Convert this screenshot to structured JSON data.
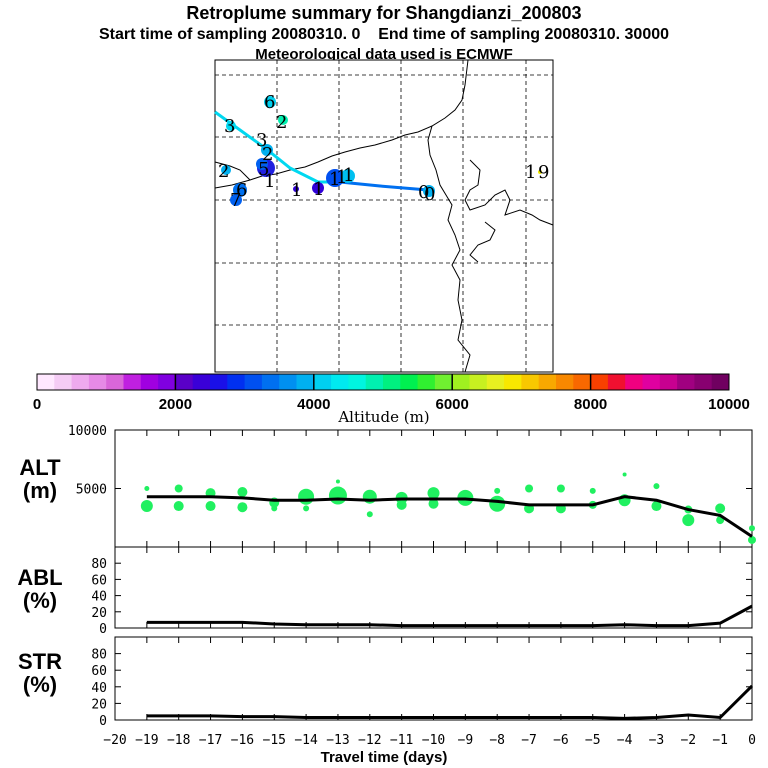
{
  "header": {
    "title": "Retroplume summary for Shangdianzi_200803",
    "start_label": "Start time of sampling 20080310.    0",
    "end_label": "End time of sampling 20080310. 30000",
    "met_label": "Meteorological data used is ECMWF"
  },
  "map": {
    "trajectory_numbers": [
      "6",
      "2",
      "3",
      "3",
      "2",
      "2",
      "5",
      "1",
      "6",
      "7",
      "1",
      "1",
      "1",
      "1",
      "1",
      "0",
      "0",
      "1",
      "9"
    ]
  },
  "colorbar": {
    "title": "Altitude (m)",
    "tick_labels": [
      "0",
      "2000",
      "4000",
      "6000",
      "8000",
      "10000"
    ],
    "colors": [
      "#ffe8ff",
      "#f5ccf5",
      "#eeaaee",
      "#e68ae6",
      "#d966d9",
      "#c020e0",
      "#a000e0",
      "#8000e0",
      "#5a00c8",
      "#3a00d8",
      "#1a10e8",
      "#0030f0",
      "#0050f0",
      "#0070f0",
      "#0090f0",
      "#00b0f0",
      "#00d0f0",
      "#00eaf0",
      "#00f5e0",
      "#00f0b0",
      "#00f080",
      "#00f050",
      "#30f030",
      "#70f030",
      "#a0f020",
      "#c8f020",
      "#e8f020",
      "#f8e800",
      "#f8c800",
      "#f8a800",
      "#f88800",
      "#f86800",
      "#f84000",
      "#f01030",
      "#f00080",
      "#e000a0",
      "#c80090",
      "#a00080",
      "#880070",
      "#700060"
    ]
  },
  "chart_data": [
    {
      "type": "line",
      "name": "ALT",
      "panel_label": [
        "ALT",
        "(m)"
      ],
      "ylim": [
        0,
        10000
      ],
      "yticks": [
        0,
        5000,
        10000
      ],
      "ytick_labels": [
        "",
        "5000",
        "10000"
      ],
      "x": [
        -19,
        -18,
        -17,
        -16,
        -15,
        -14,
        -13,
        -12,
        -11,
        -10,
        -9,
        -8,
        -7,
        -6,
        -5,
        -4,
        -3,
        -2,
        -1,
        0
      ],
      "values": [
        4300,
        4300,
        4300,
        4200,
        4000,
        4000,
        4100,
        4000,
        4100,
        4100,
        4100,
        3900,
        3600,
        3600,
        3600,
        4300,
        4000,
        3200,
        2700,
        900
      ],
      "plume_points": [
        {
          "x": -19,
          "y": 5000,
          "r": 2.5
        },
        {
          "x": -19,
          "y": 3500,
          "r": 6
        },
        {
          "x": -18,
          "y": 5000,
          "r": 4
        },
        {
          "x": -18,
          "y": 3500,
          "r": 5
        },
        {
          "x": -17,
          "y": 4600,
          "r": 5
        },
        {
          "x": -17,
          "y": 3500,
          "r": 5
        },
        {
          "x": -16,
          "y": 4700,
          "r": 5
        },
        {
          "x": -16,
          "y": 3400,
          "r": 5
        },
        {
          "x": -15,
          "y": 3800,
          "r": 5
        },
        {
          "x": -15,
          "y": 3300,
          "r": 3
        },
        {
          "x": -14,
          "y": 4300,
          "r": 8
        },
        {
          "x": -14,
          "y": 3300,
          "r": 3
        },
        {
          "x": -13,
          "y": 4400,
          "r": 9
        },
        {
          "x": -13,
          "y": 5600,
          "r": 2
        },
        {
          "x": -12,
          "y": 4300,
          "r": 7
        },
        {
          "x": -12,
          "y": 2800,
          "r": 3
        },
        {
          "x": -11,
          "y": 4200,
          "r": 6
        },
        {
          "x": -11,
          "y": 3600,
          "r": 5
        },
        {
          "x": -10,
          "y": 4600,
          "r": 6
        },
        {
          "x": -10,
          "y": 3700,
          "r": 5
        },
        {
          "x": -9,
          "y": 4200,
          "r": 8
        },
        {
          "x": -8,
          "y": 3700,
          "r": 8
        },
        {
          "x": -8,
          "y": 4800,
          "r": 3
        },
        {
          "x": -7,
          "y": 5000,
          "r": 4
        },
        {
          "x": -7,
          "y": 3300,
          "r": 5
        },
        {
          "x": -6,
          "y": 5000,
          "r": 4
        },
        {
          "x": -6,
          "y": 3300,
          "r": 5
        },
        {
          "x": -5,
          "y": 3600,
          "r": 4
        },
        {
          "x": -5,
          "y": 4800,
          "r": 3
        },
        {
          "x": -4,
          "y": 6200,
          "r": 2
        },
        {
          "x": -4,
          "y": 4000,
          "r": 6
        },
        {
          "x": -3,
          "y": 5200,
          "r": 3
        },
        {
          "x": -3,
          "y": 3500,
          "r": 5
        },
        {
          "x": -2,
          "y": 2300,
          "r": 6
        },
        {
          "x": -2,
          "y": 3200,
          "r": 4
        },
        {
          "x": -1,
          "y": 3300,
          "r": 5
        },
        {
          "x": -1,
          "y": 2300,
          "r": 4
        },
        {
          "x": 0,
          "y": 1600,
          "r": 3
        },
        {
          "x": 0,
          "y": 600,
          "r": 4
        }
      ]
    },
    {
      "type": "line",
      "name": "ABL",
      "panel_label": [
        "ABL",
        "(%)"
      ],
      "ylim": [
        0,
        100
      ],
      "yticks": [
        0,
        20,
        40,
        60,
        80
      ],
      "ytick_labels": [
        "0",
        "20",
        "40",
        "60",
        "80"
      ],
      "x": [
        -19,
        -18,
        -17,
        -16,
        -15,
        -14,
        -13,
        -12,
        -11,
        -10,
        -9,
        -8,
        -7,
        -6,
        -5,
        -4,
        -3,
        -2,
        -1,
        0
      ],
      "values": [
        7,
        7,
        7,
        7,
        5,
        4,
        4,
        4,
        3,
        3,
        3,
        3,
        3,
        3,
        3,
        4,
        3,
        3,
        6,
        27
      ]
    },
    {
      "type": "line",
      "name": "STR",
      "panel_label": [
        "STR",
        "(%)"
      ],
      "ylim": [
        0,
        100
      ],
      "yticks": [
        0,
        20,
        40,
        60,
        80
      ],
      "ytick_labels": [
        "0",
        "20",
        "40",
        "60",
        "80"
      ],
      "x": [
        -19,
        -18,
        -17,
        -16,
        -15,
        -14,
        -13,
        -12,
        -11,
        -10,
        -9,
        -8,
        -7,
        -6,
        -5,
        -4,
        -3,
        -2,
        -1,
        0
      ],
      "values": [
        5,
        5,
        5,
        4,
        4,
        3,
        3,
        3,
        3,
        3,
        3,
        3,
        3,
        3,
        3,
        2,
        3,
        6,
        3,
        41
      ]
    },
    {
      "type": "axis",
      "name": "travel-time-axis",
      "xlabel": "Travel time (days)",
      "xlim": [
        -20,
        0
      ],
      "xticks": [
        -20,
        -19,
        -18,
        -17,
        -16,
        -15,
        -14,
        -13,
        -12,
        -11,
        -10,
        -9,
        -8,
        -7,
        -6,
        -5,
        -4,
        -3,
        -2,
        -1,
        0
      ],
      "xtick_labels": [
        "−20",
        "−19",
        "−18",
        "−17",
        "−16",
        "−15",
        "−14",
        "−13",
        "−12",
        "−11",
        "−10",
        "−9",
        "−8",
        "−7",
        "−6",
        "−5",
        "−4",
        "−3",
        "−2",
        "−1",
        "0"
      ]
    }
  ]
}
